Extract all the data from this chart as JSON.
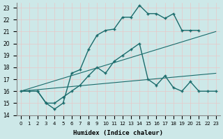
{
  "xlabel": "Humidex (Indice chaleur)",
  "xlim": [
    -0.5,
    23.5
  ],
  "ylim": [
    14,
    23.4
  ],
  "yticks": [
    14,
    15,
    16,
    17,
    18,
    19,
    20,
    21,
    22,
    23
  ],
  "xticks": [
    0,
    1,
    2,
    3,
    4,
    5,
    6,
    7,
    8,
    9,
    10,
    11,
    12,
    13,
    14,
    15,
    16,
    17,
    18,
    19,
    20,
    21,
    22,
    23
  ],
  "bg_color": "#cde8e8",
  "grid_color": "#b8d8d8",
  "line_color": "#1a6b6b",
  "lines": [
    {
      "x": [
        0,
        23
      ],
      "y": [
        16.0,
        17.5
      ],
      "marker": null,
      "linestyle": "-",
      "linewidth": 0.8
    },
    {
      "x": [
        0,
        23
      ],
      "y": [
        16.0,
        21.0
      ],
      "marker": null,
      "linestyle": "-",
      "linewidth": 0.8
    },
    {
      "x": [
        0,
        1,
        2,
        3,
        4,
        5,
        6,
        7,
        8,
        9,
        10,
        11,
        12,
        13,
        14,
        15,
        16,
        17,
        18,
        19,
        20,
        21,
        22,
        23
      ],
      "y": [
        16.0,
        16.0,
        16.0,
        15.0,
        15.0,
        15.5,
        16.0,
        16.5,
        17.3,
        18.0,
        17.5,
        18.5,
        19.0,
        19.5,
        20.0,
        17.0,
        16.5,
        17.3,
        16.3,
        16.0,
        16.8,
        16.0,
        16.0,
        16.0
      ],
      "marker": "+",
      "linestyle": "-",
      "linewidth": 1.0
    },
    {
      "x": [
        2,
        3,
        4,
        5,
        6,
        7,
        8,
        9,
        10,
        11,
        12,
        13,
        14,
        15,
        16,
        17,
        18,
        19,
        20,
        21
      ],
      "y": [
        16.0,
        15.0,
        14.5,
        15.0,
        17.5,
        17.8,
        19.5,
        20.7,
        21.1,
        21.2,
        22.2,
        22.2,
        23.2,
        22.5,
        22.5,
        22.1,
        22.5,
        21.1,
        21.1,
        21.1
      ],
      "marker": "+",
      "linestyle": "-",
      "linewidth": 1.0
    }
  ]
}
